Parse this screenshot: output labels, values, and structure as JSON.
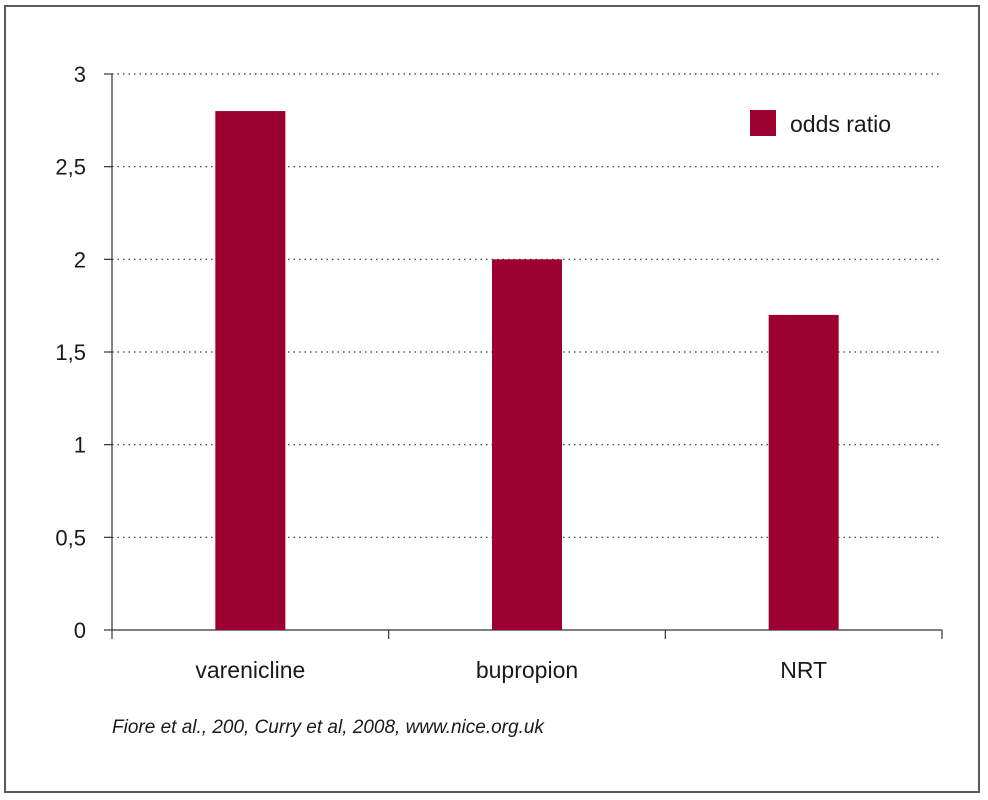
{
  "chart_data": {
    "type": "bar",
    "categories": [
      "varenicline",
      "bupropion",
      "NRT"
    ],
    "series": [
      {
        "name": "odds ratio",
        "values": [
          2.8,
          2.0,
          1.7
        ],
        "color": "#9b0030"
      }
    ],
    "ylim": [
      0,
      3
    ],
    "yticks": [
      "0",
      "0,5",
      "1",
      "1,5",
      "2",
      "2,5",
      "3"
    ],
    "ytick_values": [
      0,
      0.5,
      1,
      1.5,
      2,
      2.5,
      3
    ],
    "grid": "dotted horizontal",
    "legend_position": "top-right"
  },
  "source_note": "Fiore et al., 200, Curry et al, 2008, www.nice.org.uk"
}
